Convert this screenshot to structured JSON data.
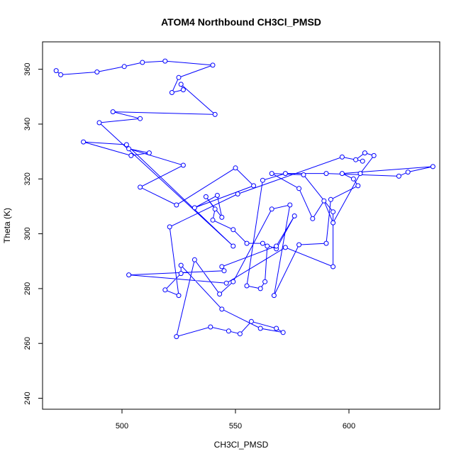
{
  "chart_data": {
    "type": "line",
    "title": "ATOM4 Northbound CH3Cl_PMSD",
    "xlabel": "CH3Cl_PMSD",
    "ylabel": "Theta (K)",
    "xlim": [
      465,
      640
    ],
    "ylim": [
      236,
      370
    ],
    "xticks": [
      500,
      550,
      600
    ],
    "yticks": [
      240,
      260,
      280,
      300,
      320,
      340,
      360
    ],
    "grid": false,
    "legend": "none",
    "markers": "open-circle",
    "line_color": "#0000ff",
    "series": [
      {
        "x": [
          471,
          473,
          489,
          501,
          509,
          519,
          540,
          525,
          522,
          527,
          526,
          541,
          496,
          508,
          490,
          549,
          502,
          483,
          504,
          512,
          503,
          527,
          508,
          524,
          550,
          558,
          532,
          542,
          544,
          537,
          541,
          540,
          549,
          555,
          562,
          568,
          576,
          568,
          544,
          545,
          503,
          546,
          572,
          593,
          593,
          580,
          566,
          578,
          584,
          589,
          593,
          605,
          611,
          607,
          603,
          606,
          597,
          551,
          521,
          525,
          519,
          526,
          526,
          544,
          561,
          571,
          568,
          557,
          552,
          547,
          539,
          524,
          532,
          543,
          549,
          566,
          574,
          567,
          578,
          590,
          592,
          604,
          602,
          597,
          637,
          626,
          622,
          590,
          572,
          562,
          555,
          561,
          563,
          564
        ],
        "y": [
          359.5,
          358,
          359,
          361,
          362.5,
          363,
          361.5,
          357,
          351.5,
          352.5,
          354.5,
          343.5,
          344.5,
          342,
          340.5,
          295.5,
          332.5,
          333.5,
          328.5,
          329.5,
          331,
          325,
          317,
          310.5,
          324,
          317.5,
          309.5,
          314,
          306,
          313.5,
          309,
          305,
          301.5,
          296.5,
          296.5,
          294.5,
          306.5,
          295.5,
          288,
          286.5,
          285,
          282,
          295,
          288,
          308,
          321.5,
          322,
          316.5,
          305.5,
          312,
          304,
          322,
          328.5,
          329.5,
          327,
          326.5,
          328,
          314.5,
          302.5,
          277.5,
          279.5,
          285.5,
          288.5,
          272.5,
          265.5,
          264,
          265.5,
          268,
          263.5,
          264.5,
          266,
          262.5,
          290.5,
          278,
          282.5,
          309,
          310.5,
          277.5,
          296,
          296.5,
          312.5,
          317.5,
          320,
          322,
          324.5,
          322.5,
          321,
          322,
          322,
          319.5,
          281,
          280,
          282.5,
          295.5
        ]
      }
    ]
  }
}
